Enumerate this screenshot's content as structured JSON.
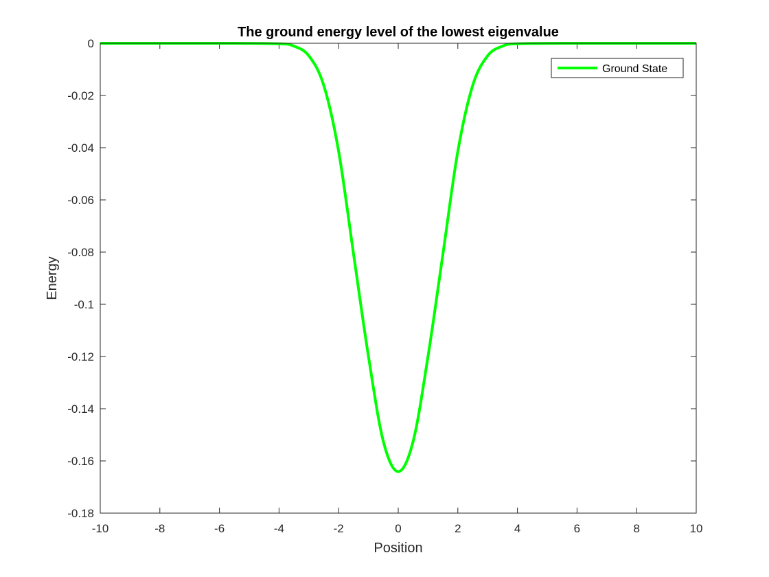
{
  "chart_data": {
    "type": "line",
    "title": "The ground energy level of the lowest eigenvalue",
    "xlabel": "Position",
    "ylabel": "Energy",
    "xlim": [
      -10,
      10
    ],
    "ylim": [
      -0.18,
      0
    ],
    "x_ticks": [
      -10,
      -8,
      -6,
      -4,
      -2,
      0,
      2,
      4,
      6,
      8,
      10
    ],
    "x_tick_labels": [
      "-10",
      "-8",
      "-6",
      "-4",
      "-2",
      "0",
      "2",
      "4",
      "6",
      "8",
      "10"
    ],
    "y_ticks": [
      0,
      -0.02,
      -0.04,
      -0.06,
      -0.08,
      -0.1,
      -0.12,
      -0.14,
      -0.16,
      -0.18
    ],
    "y_tick_labels": [
      "0",
      "-0.02",
      "-0.04",
      "-0.06",
      "-0.08",
      "-0.1",
      "-0.12",
      "-0.14",
      "-0.16",
      "-0.18"
    ],
    "grid": false,
    "legend_position": "top-right",
    "series": [
      {
        "name": "Ground State",
        "color": "#00ff00",
        "x": [
          -10,
          -6,
          -4,
          -3.5,
          -3,
          -2.5,
          -2,
          -1.5,
          -1,
          -0.5,
          0,
          0.5,
          1,
          1.5,
          2,
          2.5,
          3,
          3.5,
          4,
          6,
          10
        ],
        "y": [
          0,
          0,
          -0.0002,
          -0.0011,
          -0.0048,
          -0.0161,
          -0.0414,
          -0.0807,
          -0.1199,
          -0.1525,
          -0.1641,
          -0.1525,
          -0.1199,
          -0.0807,
          -0.0414,
          -0.0161,
          -0.0048,
          -0.0011,
          -0.0002,
          0,
          0
        ]
      }
    ]
  }
}
